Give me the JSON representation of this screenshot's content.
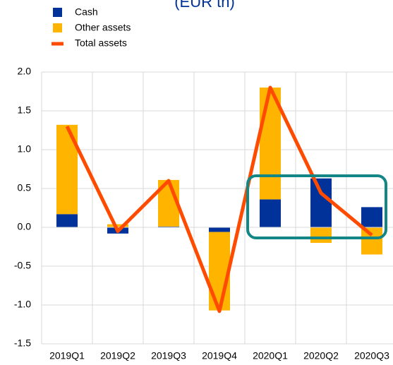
{
  "chart_data": {
    "type": "bar",
    "subtitle": "(EUR tn)",
    "categories": [
      "2019Q1",
      "2019Q2",
      "2019Q3",
      "2019Q4",
      "2020Q1",
      "2020Q2",
      "2020Q3"
    ],
    "series": [
      {
        "name": "Cash",
        "type": "bar",
        "color": "#003299",
        "values": [
          0.17,
          -0.08,
          0.01,
          -0.06,
          0.36,
          0.63,
          0.26
        ]
      },
      {
        "name": "Other assets",
        "type": "bar",
        "color": "#ffb400",
        "values": [
          1.15,
          0.04,
          0.6,
          -1.01,
          1.44,
          -0.2,
          -0.35
        ]
      },
      {
        "name": "Total assets",
        "type": "line",
        "color": "#ff4b00",
        "values": [
          1.3,
          -0.05,
          0.6,
          -1.08,
          1.8,
          0.44,
          -0.1
        ]
      }
    ],
    "stacked": true,
    "ylim": [
      -1.5,
      2.0
    ],
    "yticks": [
      {
        "value": -1.5,
        "label": "-1.5"
      },
      {
        "value": -1.0,
        "label": "-1.0"
      },
      {
        "value": -0.5,
        "label": "-0.5"
      },
      {
        "value": 0,
        "label": "0.0"
      },
      {
        "value": 0.5,
        "label": "0.5"
      },
      {
        "value": 1.0,
        "label": "1.0"
      },
      {
        "value": 1.5,
        "label": "1.5"
      },
      {
        "value": 2.0,
        "label": "2.0"
      }
    ],
    "grid": true,
    "legend": "top-left"
  }
}
